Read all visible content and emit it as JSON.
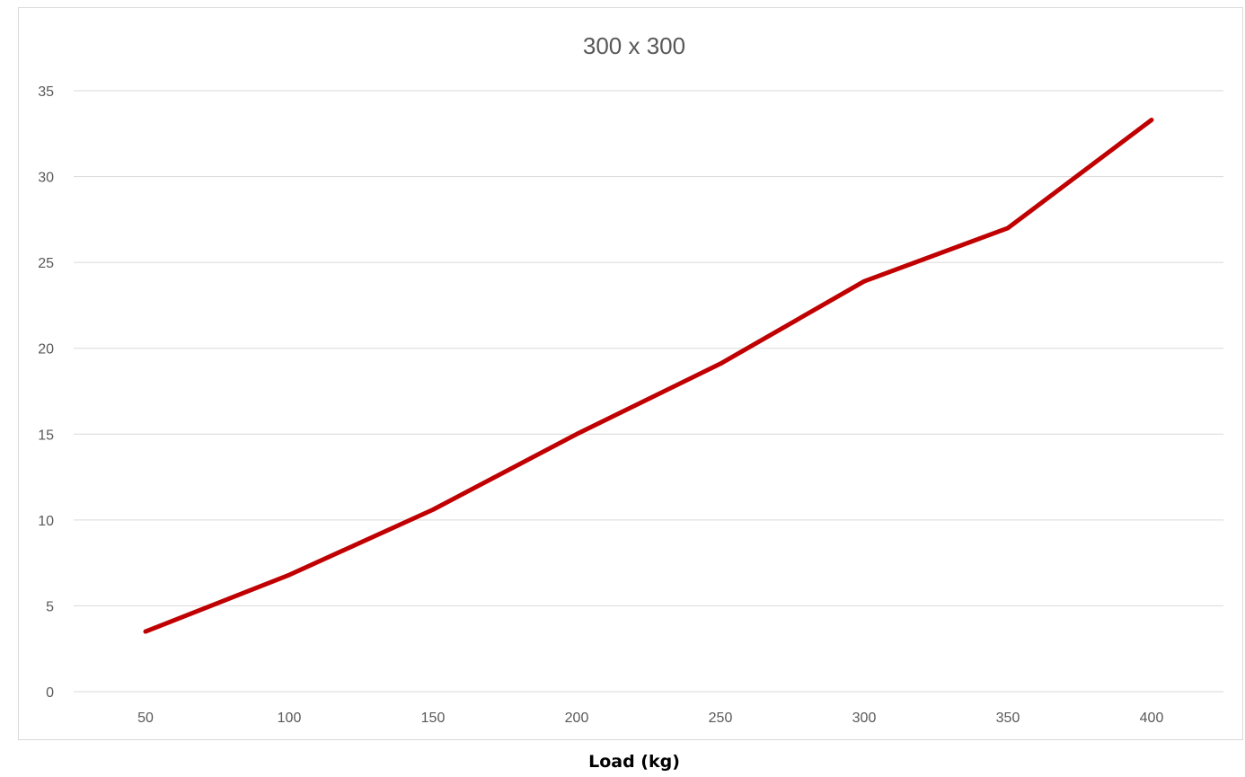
{
  "chart_data": {
    "type": "line",
    "title": "300 x 300",
    "xlabel": "Load (kg)",
    "ylabel": "",
    "categories": [
      "50",
      "100",
      "150",
      "200",
      "250",
      "300",
      "350",
      "400"
    ],
    "x": [
      50,
      100,
      150,
      200,
      250,
      300,
      350,
      400
    ],
    "series": [
      {
        "values": [
          3.5,
          6.8,
          10.6,
          15.0,
          19.1,
          23.9,
          27.0,
          33.3
        ]
      }
    ],
    "ylim": [
      0,
      35
    ],
    "yticks": [
      "0",
      "5",
      "10",
      "15",
      "20",
      "25",
      "30",
      "35"
    ],
    "grid": true,
    "legend": "none",
    "colors": {
      "series": "#c00000",
      "grid": "#d9d9d9",
      "text": "#595959"
    }
  }
}
